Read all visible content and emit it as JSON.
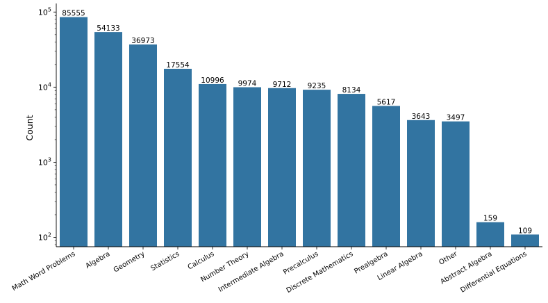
{
  "chart_data": {
    "type": "bar",
    "title": "",
    "xlabel": "",
    "ylabel": "Count",
    "yscale": "log",
    "ylim": [
      75,
      130000
    ],
    "grid": false,
    "bar_color": "#3274a1",
    "yticks": [
      {
        "value": 100,
        "base": "10",
        "exp": "2"
      },
      {
        "value": 1000,
        "base": "10",
        "exp": "3"
      },
      {
        "value": 10000,
        "base": "10",
        "exp": "4"
      },
      {
        "value": 100000,
        "base": "10",
        "exp": "5"
      }
    ],
    "categories": [
      "Math Word Problems",
      "Algebra",
      "Geometry",
      "Statistics",
      "Calculus",
      "Number Theory",
      "Intermediate Algebra",
      "Precalculus",
      "Discrete Mathematics",
      "Prealgebra",
      "Linear Algebra",
      "Other",
      "Abstract Algebra",
      "Differential Equations"
    ],
    "values": [
      85555,
      54133,
      36973,
      17554,
      10996,
      9974,
      9712,
      9235,
      8134,
      5617,
      3643,
      3497,
      159,
      109
    ],
    "data_labels": [
      "85555",
      "54133",
      "36973",
      "17554",
      "10996",
      "9974",
      "9712",
      "9235",
      "8134",
      "5617",
      "3643",
      "3497",
      "159",
      "109"
    ]
  }
}
